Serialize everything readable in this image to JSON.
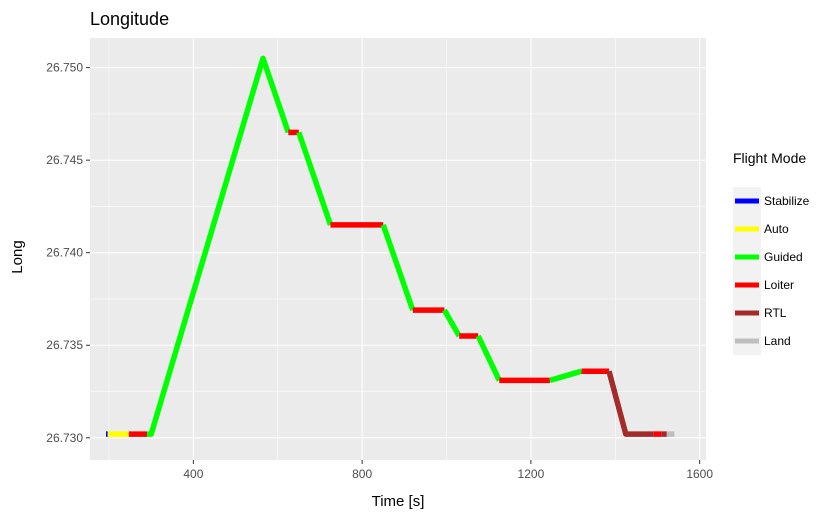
{
  "chart_data": {
    "type": "line",
    "title": "Longitude",
    "xlabel": "Time [s]",
    "ylabel": "Long",
    "xlim": [
      155,
      1615
    ],
    "ylim": [
      26.7288,
      26.7516
    ],
    "x_ticks": [
      400,
      800,
      1200,
      1600
    ],
    "y_ticks": [
      26.73,
      26.735,
      26.74,
      26.745,
      26.75
    ],
    "x_tick_labels": [
      "400",
      "800",
      "1200",
      "1600"
    ],
    "y_tick_labels": [
      "26.730",
      "26.735",
      "26.740",
      "26.745",
      "26.750"
    ],
    "grid": true,
    "legend": {
      "title": "Flight Mode",
      "placement": "right",
      "entries": [
        {
          "name": "Stabilize",
          "color": "#0000ff"
        },
        {
          "name": "Auto",
          "color": "#ffff00"
        },
        {
          "name": "Guided",
          "color": "#00ff00"
        },
        {
          "name": "Loiter",
          "color": "#ff0000"
        },
        {
          "name": "RTL",
          "color": "#a52a2a"
        },
        {
          "name": "Land",
          "color": "#bebebe"
        }
      ]
    },
    "series": [
      {
        "mode": "Stabilize",
        "points": [
          [
            193,
            26.7302
          ],
          [
            197,
            26.7302
          ]
        ]
      },
      {
        "mode": "Auto",
        "points": [
          [
            197,
            26.7302
          ],
          [
            247,
            26.7302
          ]
        ]
      },
      {
        "mode": "Loiter",
        "points": [
          [
            247,
            26.7302
          ],
          [
            290,
            26.7302
          ]
        ]
      },
      {
        "mode": "Guided",
        "points": [
          [
            290,
            26.7302
          ],
          [
            300,
            26.7302
          ],
          [
            565,
            26.7505
          ],
          [
            625,
            26.7465
          ]
        ]
      },
      {
        "mode": "Loiter",
        "points": [
          [
            625,
            26.7465
          ],
          [
            650,
            26.7465
          ]
        ]
      },
      {
        "mode": "Guided",
        "points": [
          [
            650,
            26.7465
          ],
          [
            725,
            26.7415
          ]
        ]
      },
      {
        "mode": "Loiter",
        "points": [
          [
            725,
            26.7415
          ],
          [
            850,
            26.7415
          ]
        ]
      },
      {
        "mode": "Guided",
        "points": [
          [
            850,
            26.7415
          ],
          [
            920,
            26.7369
          ]
        ]
      },
      {
        "mode": "Loiter",
        "points": [
          [
            920,
            26.7369
          ],
          [
            995,
            26.7369
          ]
        ]
      },
      {
        "mode": "Guided",
        "points": [
          [
            995,
            26.7369
          ],
          [
            1030,
            26.7355
          ]
        ]
      },
      {
        "mode": "Loiter",
        "points": [
          [
            1030,
            26.7355
          ],
          [
            1075,
            26.7355
          ]
        ]
      },
      {
        "mode": "Guided",
        "points": [
          [
            1075,
            26.7355
          ],
          [
            1125,
            26.7331
          ]
        ]
      },
      {
        "mode": "Loiter",
        "points": [
          [
            1125,
            26.7331
          ],
          [
            1245,
            26.7331
          ]
        ]
      },
      {
        "mode": "Guided",
        "points": [
          [
            1245,
            26.7331
          ],
          [
            1320,
            26.7336
          ]
        ]
      },
      {
        "mode": "Loiter",
        "points": [
          [
            1320,
            26.7336
          ],
          [
            1385,
            26.7336
          ]
        ]
      },
      {
        "mode": "RTL",
        "points": [
          [
            1385,
            26.7336
          ],
          [
            1425,
            26.7302
          ],
          [
            1490,
            26.7302
          ]
        ]
      },
      {
        "mode": "Loiter",
        "points": [
          [
            1490,
            26.7302
          ],
          [
            1510,
            26.7302
          ]
        ]
      },
      {
        "mode": "RTL",
        "points": [
          [
            1510,
            26.7302
          ],
          [
            1522,
            26.7302
          ]
        ]
      },
      {
        "mode": "Land",
        "points": [
          [
            1522,
            26.7302
          ],
          [
            1540,
            26.7302
          ]
        ]
      }
    ]
  }
}
